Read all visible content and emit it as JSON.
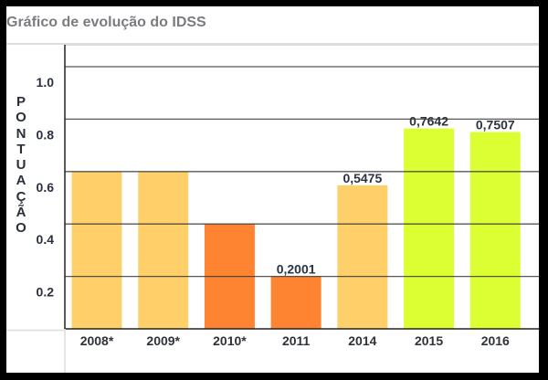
{
  "chart_data": {
    "type": "bar",
    "title": "Gráfico de evolução do IDSS",
    "xlabel": "",
    "ylabel": "PONTUAÇÃO",
    "ylim": [
      0,
      1.0
    ],
    "yticks": [
      "0.2",
      "0.4",
      "0.6",
      "0.8",
      "1.0"
    ],
    "ytick_values": [
      0.2,
      0.4,
      0.6,
      0.8,
      1.0
    ],
    "grid": true,
    "categories": [
      "2008*",
      "2009*",
      "2010*",
      "2011",
      "2014",
      "2015",
      "2016"
    ],
    "values": [
      0.6,
      0.6,
      0.4,
      0.2001,
      0.5475,
      0.7642,
      0.7507
    ],
    "data_labels": [
      "",
      "",
      "",
      "0,2001",
      "0,5475",
      "0,7642",
      "0,7507"
    ],
    "colors": [
      "#ffd06a",
      "#ffd06a",
      "#ff8431",
      "#ff8431",
      "#ffd06a",
      "#dcff33",
      "#dcff33"
    ]
  },
  "ylabel_letters": [
    "P",
    "O",
    "N",
    "T",
    "U",
    "A",
    "Ç",
    "Ã",
    "O"
  ]
}
